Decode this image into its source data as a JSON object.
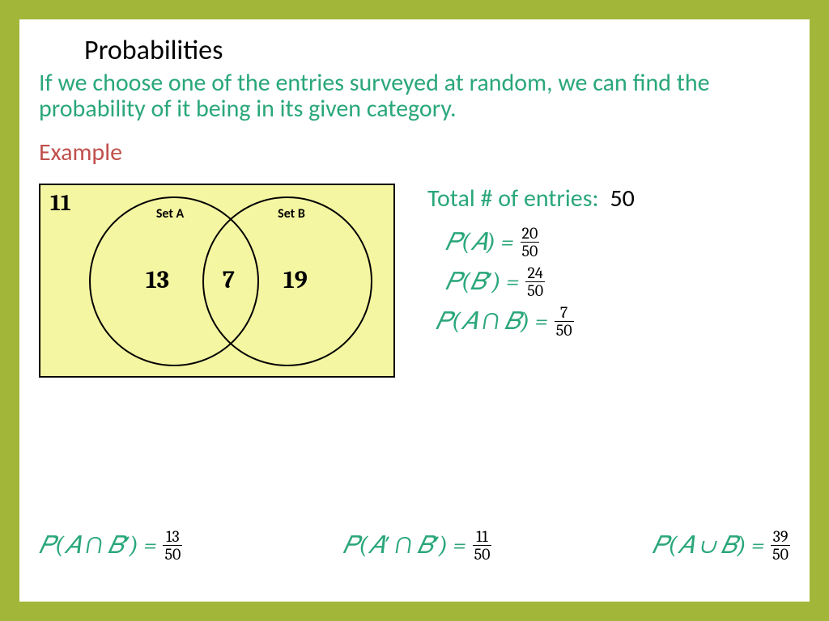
{
  "colors": {
    "border": "#a2b63a",
    "accent": "#2aa77a",
    "example": "#c0504d",
    "venn_bg": "#f5f6a2",
    "black": "#000000"
  },
  "title": "Probabilities",
  "intro": "If we choose one of the entries surveyed at random, we can find the probability of it being in its given category.",
  "example_label": "Example",
  "venn": {
    "outside": "11",
    "set_a_label": "Set A",
    "set_b_label": "Set B",
    "only_a": "13",
    "intersection": "7",
    "only_b": "19",
    "bg_color": "#f5f6a2"
  },
  "total": {
    "label": "Total # of entries:",
    "value": "50"
  },
  "eqs_right": [
    {
      "lhs": "𝑃(𝐴) =",
      "num": "20",
      "den": "50",
      "indent": 0
    },
    {
      "lhs": "𝑃(𝐵′) =",
      "num": "24",
      "den": "50",
      "indent": 0
    },
    {
      "lhs": "𝑃(𝐴 ∩ 𝐵) =",
      "num": "7",
      "den": "50",
      "indent": -12
    }
  ],
  "eqs_bottom": [
    {
      "lhs": "𝑃(𝐴 ∩ 𝐵′) =",
      "num": "13",
      "den": "50"
    },
    {
      "lhs": "𝑃(𝐴′ ∩ 𝐵′) =",
      "num": "11",
      "den": "50"
    },
    {
      "lhs": "𝑃(𝐴 ∪ 𝐵) =",
      "num": "39",
      "den": "50"
    }
  ]
}
